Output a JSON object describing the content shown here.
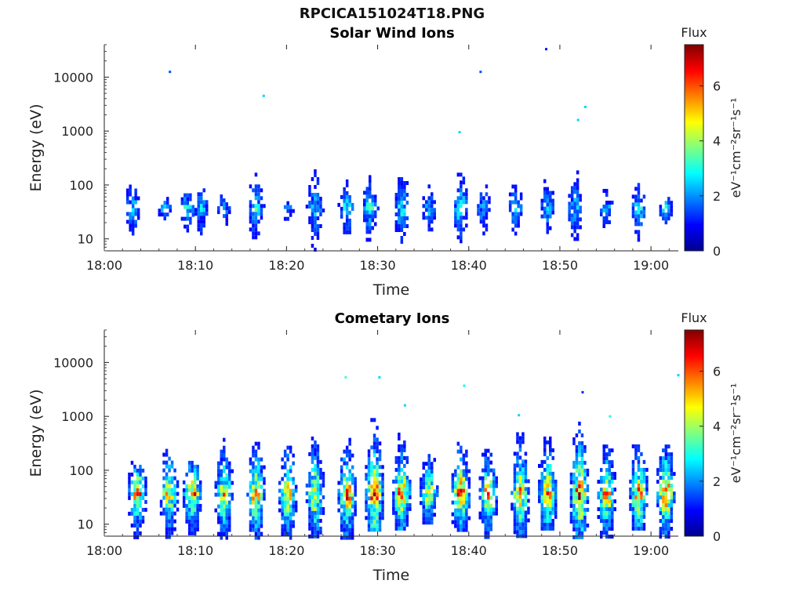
{
  "figure": {
    "title": "RPCICA151024T18.PNG"
  },
  "colormap": {
    "stops": [
      "#00008f",
      "#0000ff",
      "#0080ff",
      "#00ffff",
      "#80ff80",
      "#ffff00",
      "#ff8000",
      "#ff0000",
      "#800000"
    ]
  },
  "chart_data": [
    {
      "type": "heatmap",
      "title": "Solar Wind Ions",
      "xlabel": "Time",
      "ylabel": "Energy (eV)",
      "y_scale": "log",
      "xlim": [
        "18:00",
        "19:03"
      ],
      "ylim": [
        6,
        40000
      ],
      "xticks": [
        "18:00",
        "18:10",
        "18:20",
        "18:30",
        "18:40",
        "18:50",
        "19:00"
      ],
      "yticks": [
        10,
        100,
        1000,
        10000
      ],
      "ytick_labels": [
        "10",
        "100",
        "1000",
        "10000"
      ],
      "colorbar": {
        "title": "Flux",
        "label": "eV⁻¹cm⁻²sr⁻¹s⁻¹",
        "range": [
          0,
          7.5
        ],
        "ticks": [
          0,
          2,
          4,
          6
        ]
      },
      "bursts": [
        {
          "t": "18:03",
          "emin": 6,
          "emax": 120,
          "peak": 3.0
        },
        {
          "t": "18:06.5",
          "emin": 10,
          "emax": 60,
          "peak": 2.5
        },
        {
          "t": "18:09",
          "emin": 8,
          "emax": 70,
          "peak": 3.3
        },
        {
          "t": "18:10.5",
          "emin": 6,
          "emax": 200,
          "peak": 2.5
        },
        {
          "t": "18:13",
          "emin": 8,
          "emax": 130,
          "peak": 2.0
        },
        {
          "t": "18:16.5",
          "emin": 6,
          "emax": 200,
          "peak": 3.0
        },
        {
          "t": "18:20",
          "emin": 8,
          "emax": 50,
          "peak": 2.0
        },
        {
          "t": "18:23",
          "emin": 6,
          "emax": 450,
          "peak": 2.8
        },
        {
          "t": "18:26.5",
          "emin": 8,
          "emax": 150,
          "peak": 3.0
        },
        {
          "t": "18:29",
          "emin": 8,
          "emax": 180,
          "peak": 3.3
        },
        {
          "t": "18:32.5",
          "emin": 8,
          "emax": 450,
          "peak": 3.0
        },
        {
          "t": "18:35.5",
          "emin": 10,
          "emax": 200,
          "peak": 2.5
        },
        {
          "t": "18:39",
          "emin": 6,
          "emax": 200,
          "peak": 3.3
        },
        {
          "t": "18:41.5",
          "emin": 8,
          "emax": 200,
          "peak": 2.5
        },
        {
          "t": "18:45",
          "emin": 6,
          "emax": 120,
          "peak": 2.8
        },
        {
          "t": "18:48.5",
          "emin": 8,
          "emax": 250,
          "peak": 2.5
        },
        {
          "t": "18:51.5",
          "emin": 6,
          "emax": 600,
          "peak": 2.5
        },
        {
          "t": "18:55",
          "emin": 10,
          "emax": 100,
          "peak": 2.5
        },
        {
          "t": "18:58.5",
          "emin": 8,
          "emax": 180,
          "peak": 3.0
        },
        {
          "t": "19:01.5",
          "emin": 8,
          "emax": 60,
          "peak": 2.8
        }
      ],
      "points": [
        {
          "t": "18:07.2",
          "e": 12500,
          "v": 1.5
        },
        {
          "t": "18:17.5",
          "e": 4500,
          "v": 2.5
        },
        {
          "t": "18:41.3",
          "e": 12500,
          "v": 1.5
        },
        {
          "t": "18:48.5",
          "e": 33000,
          "v": 1.0
        },
        {
          "t": "18:52.8",
          "e": 2800,
          "v": 2.5
        },
        {
          "t": "18:52",
          "e": 1600,
          "v": 2.5
        },
        {
          "t": "18:39",
          "e": 950,
          "v": 2.5
        }
      ]
    },
    {
      "type": "heatmap",
      "title": "Cometary Ions",
      "xlabel": "Time",
      "ylabel": "Energy (eV)",
      "y_scale": "log",
      "xlim": [
        "18:00",
        "19:03"
      ],
      "ylim": [
        6,
        40000
      ],
      "xticks": [
        "18:00",
        "18:10",
        "18:20",
        "18:30",
        "18:40",
        "18:50",
        "19:00"
      ],
      "yticks": [
        10,
        100,
        1000,
        10000
      ],
      "ytick_labels": [
        "10",
        "100",
        "1000",
        "10000"
      ],
      "colorbar": {
        "title": "Flux",
        "label": "eV⁻¹cm⁻²sr⁻¹s⁻¹",
        "range": [
          0,
          7.5
        ],
        "ticks": [
          0,
          2,
          4,
          6
        ]
      },
      "bursts": [
        {
          "t": "18:03.5",
          "emin": 6,
          "emax": 150,
          "peak": 6.3
        },
        {
          "t": "18:07",
          "emin": 6,
          "emax": 250,
          "peak": 5.5
        },
        {
          "t": "18:09.5",
          "emin": 6,
          "emax": 150,
          "peak": 6.5
        },
        {
          "t": "18:13",
          "emin": 6,
          "emax": 400,
          "peak": 5.3
        },
        {
          "t": "18:16.5",
          "emin": 6,
          "emax": 400,
          "peak": 6.0
        },
        {
          "t": "18:20",
          "emin": 6,
          "emax": 400,
          "peak": 5.8
        },
        {
          "t": "18:23",
          "emin": 6,
          "emax": 500,
          "peak": 5.5
        },
        {
          "t": "18:26.5",
          "emin": 6,
          "emax": 400,
          "peak": 6.5
        },
        {
          "t": "18:29.5",
          "emin": 8,
          "emax": 1100,
          "peak": 6.8
        },
        {
          "t": "18:32.5",
          "emin": 8,
          "emax": 500,
          "peak": 6.3
        },
        {
          "t": "18:35.5",
          "emin": 10,
          "emax": 280,
          "peak": 5.3
        },
        {
          "t": "18:39",
          "emin": 8,
          "emax": 400,
          "peak": 6.8
        },
        {
          "t": "18:42",
          "emin": 6,
          "emax": 250,
          "peak": 6.0
        },
        {
          "t": "18:45.5",
          "emin": 6,
          "emax": 600,
          "peak": 6.0
        },
        {
          "t": "18:48.5",
          "emin": 8,
          "emax": 500,
          "peak": 6.3
        },
        {
          "t": "18:52",
          "emin": 6,
          "emax": 800,
          "peak": 6.8
        },
        {
          "t": "18:55",
          "emin": 6,
          "emax": 300,
          "peak": 6.0
        },
        {
          "t": "18:58.5",
          "emin": 8,
          "emax": 500,
          "peak": 6.0
        },
        {
          "t": "19:01.5",
          "emin": 6,
          "emax": 300,
          "peak": 6.8
        }
      ],
      "points": [
        {
          "t": "18:26.5",
          "e": 5300,
          "v": 3.3
        },
        {
          "t": "18:30.2",
          "e": 5300,
          "v": 2.5
        },
        {
          "t": "18:39.5",
          "e": 3700,
          "v": 2.8
        },
        {
          "t": "18:52.5",
          "e": 2800,
          "v": 1.2
        },
        {
          "t": "19:03",
          "e": 5800,
          "v": 2.5
        },
        {
          "t": "18:33",
          "e": 1600,
          "v": 2.5
        },
        {
          "t": "18:45.5",
          "e": 1050,
          "v": 2.5
        },
        {
          "t": "18:55.5",
          "e": 1000,
          "v": 3.0
        }
      ]
    }
  ]
}
